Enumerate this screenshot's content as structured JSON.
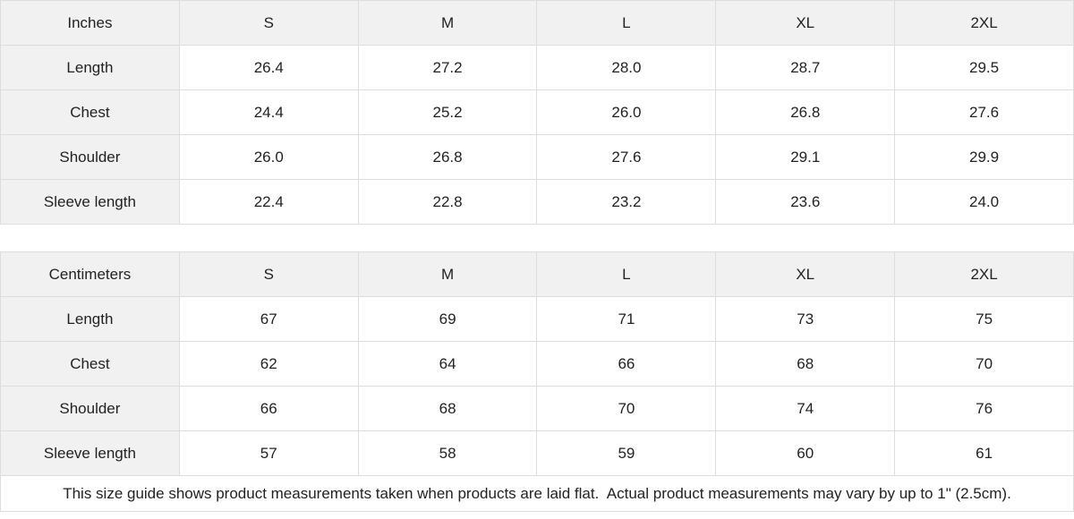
{
  "colors": {
    "header_background": "#f1f1f1",
    "border": "#dddddd",
    "text": "#222222",
    "background": "#ffffff"
  },
  "tables": [
    {
      "unit_label": "Inches",
      "sizes": [
        "S",
        "M",
        "L",
        "XL",
        "2XL"
      ],
      "rows": [
        {
          "label": "Length",
          "values": [
            "26.4",
            "27.2",
            "28.0",
            "28.7",
            "29.5"
          ]
        },
        {
          "label": "Chest",
          "values": [
            "24.4",
            "25.2",
            "26.0",
            "26.8",
            "27.6"
          ]
        },
        {
          "label": "Shoulder",
          "values": [
            "26.0",
            "26.8",
            "27.6",
            "29.1",
            "29.9"
          ]
        },
        {
          "label": "Sleeve length",
          "values": [
            "22.4",
            "22.8",
            "23.2",
            "23.6",
            "24.0"
          ]
        }
      ]
    },
    {
      "unit_label": "Centimeters",
      "sizes": [
        "S",
        "M",
        "L",
        "XL",
        "2XL"
      ],
      "rows": [
        {
          "label": "Length",
          "values": [
            "67",
            "69",
            "71",
            "73",
            "75"
          ]
        },
        {
          "label": "Chest",
          "values": [
            "62",
            "64",
            "66",
            "68",
            "70"
          ]
        },
        {
          "label": "Shoulder",
          "values": [
            "66",
            "68",
            "70",
            "74",
            "76"
          ]
        },
        {
          "label": "Sleeve length",
          "values": [
            "57",
            "58",
            "59",
            "60",
            "61"
          ]
        }
      ]
    }
  ],
  "footer": {
    "note": "This size guide shows product measurements taken when products are laid flat.  Actual product measurements may vary by up to 1\" (2.5cm)."
  }
}
